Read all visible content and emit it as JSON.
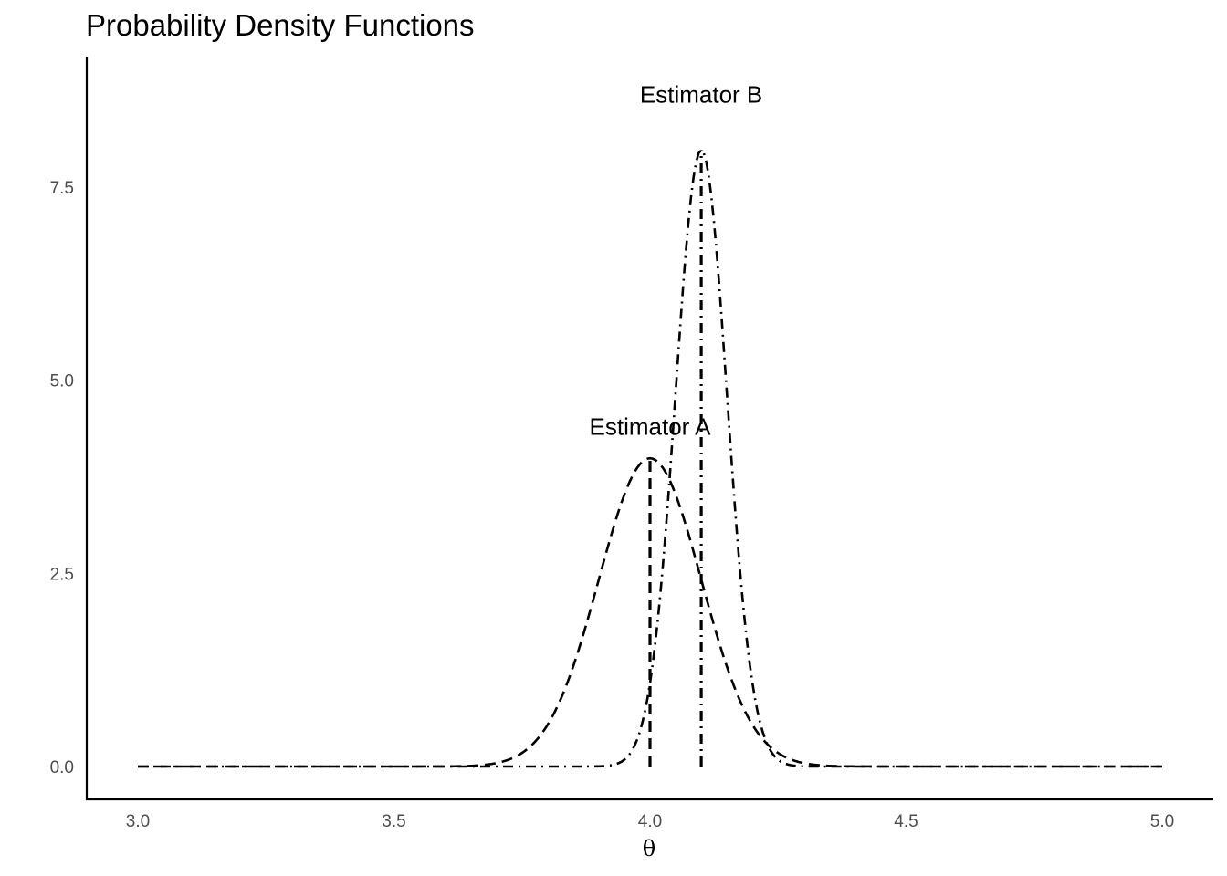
{
  "chart_data": {
    "type": "line",
    "title": "Probability Density Functions",
    "xlabel": "θ",
    "ylabel": "",
    "xlim": [
      3.0,
      5.0
    ],
    "ylim": [
      0,
      8.5
    ],
    "x_ticks": [
      3.0,
      3.5,
      4.0,
      4.5,
      5.0
    ],
    "x_tick_labels": [
      "3.0",
      "3.5",
      "4.0",
      "4.5",
      "5.0"
    ],
    "y_ticks": [
      0.0,
      2.5,
      5.0,
      7.5
    ],
    "y_tick_labels": [
      "0.0",
      "2.5",
      "5.0",
      "7.5"
    ],
    "grid": false,
    "legend": "none",
    "color": "#000000",
    "series": [
      {
        "linestyle": "dashed",
        "distribution": "normal",
        "mean": 4.0,
        "sd": 0.1,
        "peak": 3.99
      },
      {
        "linestyle": "dashdot",
        "distribution": "normal",
        "mean": 4.1,
        "sd": 0.05,
        "peak": 7.98
      }
    ],
    "vlines": [
      {
        "x": 4.0,
        "y_end": 3.99,
        "linestyle": "dashed"
      },
      {
        "x": 4.1,
        "y_end": 7.98,
        "linestyle": "dashdot"
      }
    ],
    "annotations": [
      {
        "text": "Estimator A",
        "x": 4.0,
        "y": 4.4
      },
      {
        "text": "Estimator B",
        "x": 4.1,
        "y": 8.7
      }
    ]
  }
}
